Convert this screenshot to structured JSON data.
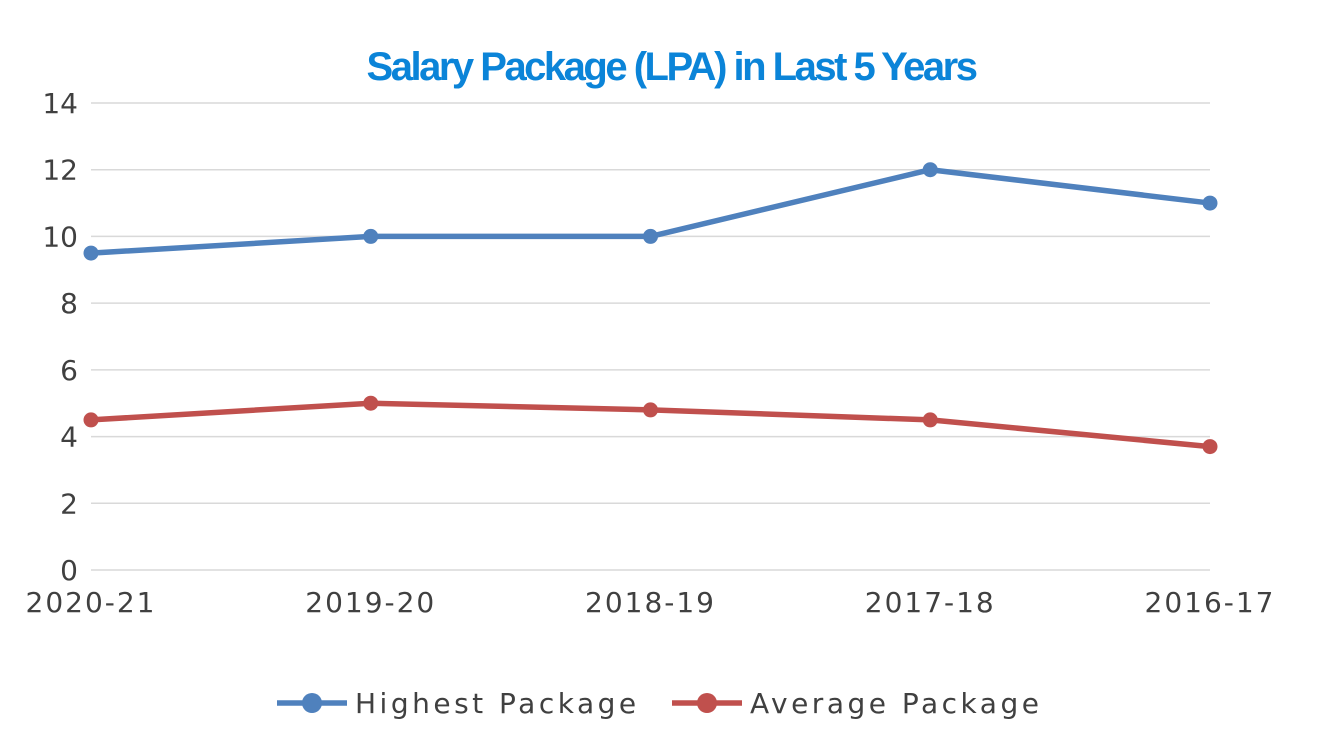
{
  "chart_data": {
    "type": "line",
    "title": "Salary Package (LPA) in Last 5 Years",
    "xlabel": "",
    "ylabel": "",
    "categories": [
      "2020-21",
      "2019-20",
      "2018-19",
      "2017-18",
      "2016-17"
    ],
    "ylim": [
      0,
      14
    ],
    "yticks": [
      0,
      2,
      4,
      6,
      8,
      10,
      12,
      14
    ],
    "grid": true,
    "legend_position": "bottom",
    "series": [
      {
        "name": "Highest Package",
        "values": [
          9.5,
          10,
          10,
          12,
          11
        ],
        "color": "#4f81bd"
      },
      {
        "name": "Average Package",
        "values": [
          4.5,
          5,
          4.8,
          4.5,
          3.7
        ],
        "color": "#c0504d"
      }
    ]
  },
  "colors": {
    "title": "#0b84d8",
    "gridline": "#d9d9d9",
    "axis_text": "#404040"
  }
}
